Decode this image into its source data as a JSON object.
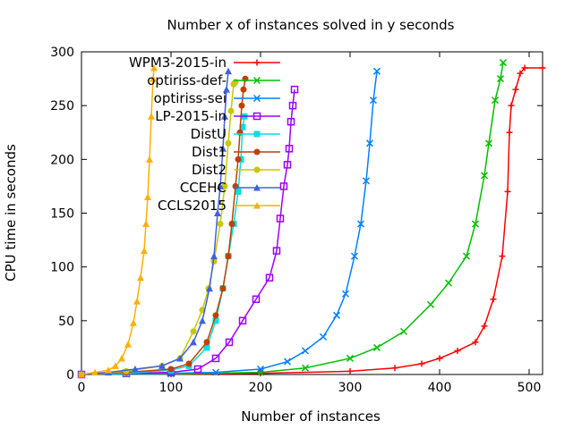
{
  "chart_data": {
    "type": "line",
    "title": "Number x of instances solved in y seconds",
    "xlabel": "Number of instances",
    "ylabel": "CPU time in seconds",
    "xlim": [
      0,
      515
    ],
    "ylim": [
      0,
      300
    ],
    "xticks": [
      0,
      100,
      200,
      300,
      400,
      500
    ],
    "yticks": [
      0,
      50,
      100,
      150,
      200,
      250,
      300
    ],
    "grid": false,
    "legend_position": "top-left",
    "series": [
      {
        "name": "WPM3-2015-in",
        "color": "#ff0000",
        "marker": "plus",
        "points": [
          [
            0,
            0
          ],
          [
            100,
            0.3
          ],
          [
            200,
            1
          ],
          [
            300,
            3
          ],
          [
            350,
            6
          ],
          [
            380,
            10
          ],
          [
            400,
            15
          ],
          [
            420,
            22
          ],
          [
            440,
            30
          ],
          [
            450,
            45
          ],
          [
            460,
            70
          ],
          [
            470,
            110
          ],
          [
            476,
            170
          ],
          [
            478,
            225
          ],
          [
            480,
            250
          ],
          [
            485,
            265
          ],
          [
            490,
            280
          ],
          [
            495,
            285
          ],
          [
            515,
            285
          ]
        ]
      },
      {
        "name": "optiriss-def-",
        "color": "#00c000",
        "marker": "x",
        "points": [
          [
            0,
            0
          ],
          [
            100,
            0.5
          ],
          [
            200,
            2
          ],
          [
            250,
            6
          ],
          [
            300,
            15
          ],
          [
            330,
            25
          ],
          [
            360,
            40
          ],
          [
            390,
            65
          ],
          [
            410,
            85
          ],
          [
            430,
            110
          ],
          [
            440,
            140
          ],
          [
            450,
            185
          ],
          [
            455,
            215
          ],
          [
            462,
            255
          ],
          [
            468,
            275
          ],
          [
            471,
            290
          ]
        ]
      },
      {
        "name": "optiriss-sei",
        "color": "#0080ff",
        "marker": "x",
        "points": [
          [
            0,
            0
          ],
          [
            50,
            0.5
          ],
          [
            100,
            1
          ],
          [
            150,
            2
          ],
          [
            200,
            5
          ],
          [
            230,
            12
          ],
          [
            250,
            22
          ],
          [
            270,
            35
          ],
          [
            285,
            55
          ],
          [
            295,
            75
          ],
          [
            305,
            110
          ],
          [
            312,
            140
          ],
          [
            318,
            180
          ],
          [
            322,
            215
          ],
          [
            326,
            255
          ],
          [
            330,
            282
          ]
        ]
      },
      {
        "name": "LP-2015-in",
        "color": "#a000ff",
        "marker": "square",
        "points": [
          [
            0,
            0
          ],
          [
            50,
            1
          ],
          [
            100,
            2
          ],
          [
            130,
            5
          ],
          [
            150,
            15
          ],
          [
            165,
            30
          ],
          [
            180,
            50
          ],
          [
            195,
            70
          ],
          [
            210,
            90
          ],
          [
            218,
            115
          ],
          [
            222,
            145
          ],
          [
            226,
            175
          ],
          [
            230,
            195
          ],
          [
            232,
            210
          ],
          [
            234,
            235
          ],
          [
            236,
            250
          ],
          [
            238,
            265
          ]
        ]
      },
      {
        "name": "DistU",
        "color": "#00e0e0",
        "marker": "filled-square",
        "points": [
          [
            0,
            0
          ],
          [
            50,
            1
          ],
          [
            100,
            4
          ],
          [
            120,
            8
          ],
          [
            140,
            25
          ],
          [
            150,
            50
          ],
          [
            158,
            80
          ],
          [
            164,
            110
          ],
          [
            170,
            140
          ],
          [
            175,
            170
          ],
          [
            178,
            200
          ],
          [
            180,
            230
          ],
          [
            182,
            240
          ]
        ]
      },
      {
        "name": "Dist1",
        "color": "#c04000",
        "marker": "filled-circle",
        "points": [
          [
            0,
            0
          ],
          [
            50,
            2
          ],
          [
            100,
            5
          ],
          [
            120,
            10
          ],
          [
            140,
            30
          ],
          [
            150,
            55
          ],
          [
            158,
            80
          ],
          [
            164,
            110
          ],
          [
            168,
            140
          ],
          [
            172,
            175
          ],
          [
            175,
            200
          ],
          [
            177,
            225
          ],
          [
            179,
            250
          ],
          [
            181,
            265
          ],
          [
            183,
            275
          ]
        ]
      },
      {
        "name": "Dist2",
        "color": "#c8c800",
        "marker": "filled-circle",
        "points": [
          [
            0,
            0
          ],
          [
            50,
            3
          ],
          [
            90,
            8
          ],
          [
            110,
            15
          ],
          [
            125,
            40
          ],
          [
            135,
            60
          ],
          [
            142,
            80
          ],
          [
            148,
            105
          ],
          [
            155,
            140
          ],
          [
            160,
            175
          ],
          [
            164,
            215
          ],
          [
            167,
            245
          ],
          [
            170,
            270
          ],
          [
            172,
            272
          ]
        ]
      },
      {
        "name": "CCEHC",
        "color": "#4060e0",
        "marker": "filled-triangle",
        "points": [
          [
            0,
            0
          ],
          [
            30,
            2
          ],
          [
            60,
            5
          ],
          [
            90,
            8
          ],
          [
            110,
            15
          ],
          [
            125,
            30
          ],
          [
            135,
            50
          ],
          [
            143,
            80
          ],
          [
            148,
            110
          ],
          [
            152,
            150
          ],
          [
            155,
            175
          ],
          [
            158,
            210
          ],
          [
            160,
            240
          ],
          [
            162,
            265
          ],
          [
            164,
            282
          ]
        ]
      },
      {
        "name": "CCLS2015",
        "color": "#ffb000",
        "marker": "filled-triangle",
        "points": [
          [
            0,
            0
          ],
          [
            15,
            2
          ],
          [
            30,
            4
          ],
          [
            38,
            8
          ],
          [
            45,
            15
          ],
          [
            52,
            28
          ],
          [
            58,
            48
          ],
          [
            62,
            68
          ],
          [
            66,
            90
          ],
          [
            70,
            115
          ],
          [
            72,
            140
          ],
          [
            74,
            165
          ],
          [
            76,
            200
          ],
          [
            78,
            240
          ],
          [
            80,
            275
          ],
          [
            81,
            285
          ]
        ]
      }
    ]
  }
}
